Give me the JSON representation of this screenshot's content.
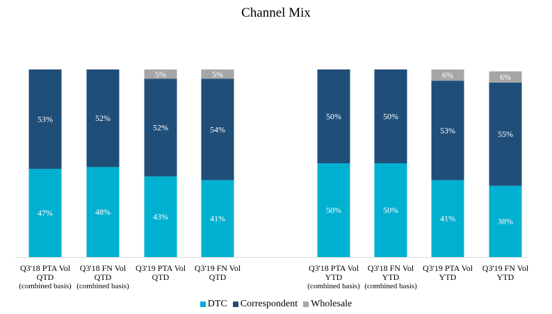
{
  "chart_data": {
    "type": "bar",
    "stacked": true,
    "title": "Channel Mix",
    "categories": [
      [
        "Q3'18 PTA Vol",
        "QTD",
        "(combined basis)"
      ],
      [
        "Q3'18 FN  Vol",
        "QTD",
        "(combined basis)"
      ],
      [
        "Q3'19 PTA Vol",
        "QTD"
      ],
      [
        "Q3'19 FN  Vol",
        "QTD"
      ],
      [
        "Q3'18 PTA Vol",
        "YTD",
        "(combined basis)"
      ],
      [
        "Q3'18 FN  Vol",
        "YTD",
        "(combined basis)"
      ],
      [
        "Q3'19 PTA Vol",
        "YTD"
      ],
      [
        "Q3'19 FN  Vol",
        "YTD"
      ]
    ],
    "series": [
      {
        "name": "DTC",
        "color": "#00B0D0",
        "values": [
          47,
          48,
          43,
          41,
          50,
          50,
          41,
          38
        ]
      },
      {
        "name": "Correspondent",
        "color": "#1F4E79",
        "values": [
          53,
          52,
          52,
          54,
          50,
          50,
          53,
          55
        ]
      },
      {
        "name": "Wholesale",
        "color": "#A6A6A6",
        "values": [
          null,
          null,
          5,
          5,
          null,
          null,
          6,
          6
        ]
      }
    ],
    "value_format": "percent",
    "ylim": [
      0,
      100
    ],
    "grid": false,
    "legend": "bottom"
  }
}
